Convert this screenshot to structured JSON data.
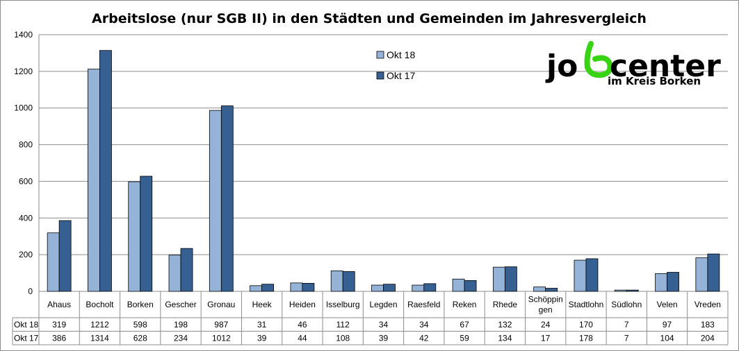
{
  "chart_data": {
    "type": "bar",
    "title": "Arbeitslose (nur SGB II) in den Städten und Gemeinden im Jahresvergleich",
    "categories": [
      "Ahaus",
      "Bocholt",
      "Borken",
      "Gescher",
      "Gronau",
      "Heek",
      "Heiden",
      "Isselburg",
      "Legden",
      "Raesfeld",
      "Reken",
      "Rhede",
      "Schöppin gen",
      "Stadtlohn",
      "Südlohn",
      "Velen",
      "Vreden"
    ],
    "category_lines": [
      [
        "Ahaus"
      ],
      [
        "Bocholt"
      ],
      [
        "Borken"
      ],
      [
        "Gescher"
      ],
      [
        "Gronau"
      ],
      [
        "Heek"
      ],
      [
        "Heiden"
      ],
      [
        "Isselburg"
      ],
      [
        "Legden"
      ],
      [
        "Raesfeld"
      ],
      [
        "Reken"
      ],
      [
        "Rhede"
      ],
      [
        "Schöppin",
        "gen"
      ],
      [
        "Stadtlohn"
      ],
      [
        "Südlohn"
      ],
      [
        "Velen"
      ],
      [
        "Vreden"
      ]
    ],
    "series": [
      {
        "name": "Okt 18",
        "color": "#95B3D7",
        "values": [
          319,
          1212,
          598,
          198,
          987,
          31,
          46,
          112,
          34,
          34,
          67,
          132,
          24,
          170,
          7,
          97,
          183
        ]
      },
      {
        "name": "Okt 17",
        "color": "#376092",
        "values": [
          386,
          1314,
          628,
          234,
          1012,
          39,
          44,
          108,
          39,
          42,
          59,
          134,
          17,
          178,
          7,
          104,
          204
        ]
      }
    ],
    "ylim": [
      0,
      1400
    ],
    "yticks": [
      0,
      200,
      400,
      600,
      800,
      1000,
      1200,
      1400
    ],
    "grid": true,
    "legend_position": "top-center",
    "data_table": true
  },
  "logo": {
    "text_left": "jo",
    "text_right": "center",
    "subtitle": "im Kreis Borken",
    "accent_color": "#39D315"
  }
}
